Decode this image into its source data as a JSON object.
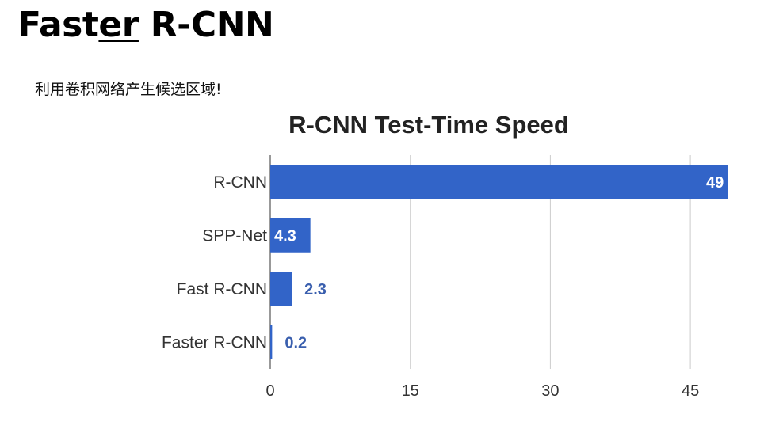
{
  "slide": {
    "title_pre": "Fast",
    "title_underline": "er",
    "title_post": " R-CNN",
    "subtitle": "利用卷积网络产生候选区域!"
  },
  "chart_data": {
    "type": "bar",
    "orientation": "horizontal",
    "title": "R-CNN Test-Time Speed",
    "categories": [
      "R-CNN",
      "SPP-Net",
      "Fast R-CNN",
      "Faster R-CNN"
    ],
    "values": [
      49,
      4.3,
      2.3,
      0.2
    ],
    "data_labels": [
      "49",
      "4.3",
      "2.3",
      "0.2"
    ],
    "xlim": [
      0,
      50
    ],
    "xticks": [
      0,
      15,
      30,
      45
    ],
    "grid": true,
    "bar_color": "#3264c8",
    "label_inside_color": "#ffffff",
    "label_outside_color": "#3a5fae"
  }
}
